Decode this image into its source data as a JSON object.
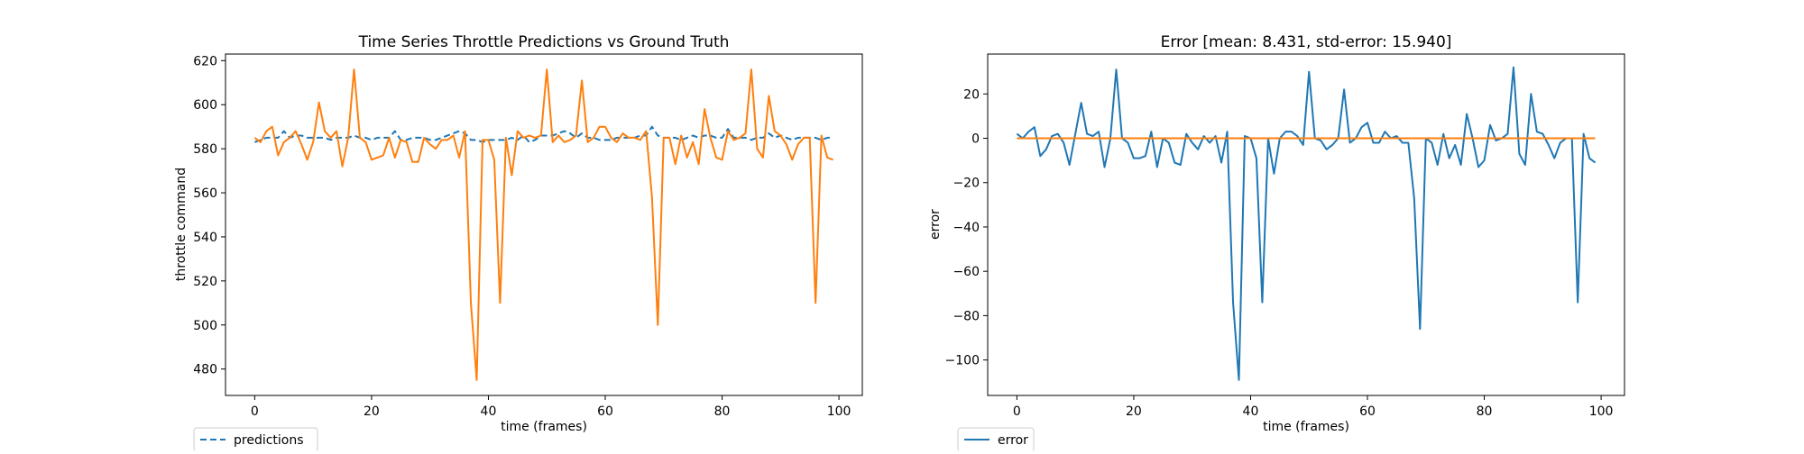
{
  "chart_data": [
    {
      "type": "line",
      "title": "Time Series Throttle Predictions vs Ground Truth",
      "xlabel": "time (frames)",
      "ylabel": "throttle command",
      "xlim": [
        -5,
        104
      ],
      "ylim": [
        468,
        623
      ],
      "xticks": [
        0,
        20,
        40,
        60,
        80,
        100
      ],
      "yticks": [
        480,
        500,
        520,
        540,
        560,
        580,
        600,
        620
      ],
      "legend_position": "below-left",
      "series": [
        {
          "name": "predictions",
          "color": "#1f77b4",
          "dash": true,
          "in_legend": true,
          "values": [
            583,
            584,
            585,
            585,
            585,
            588,
            585,
            586,
            586,
            585,
            585,
            585,
            585,
            584,
            585,
            585,
            585,
            586,
            585,
            585,
            584,
            585,
            585,
            585,
            588,
            584,
            584,
            585,
            585,
            585,
            584,
            584,
            585,
            586,
            587,
            588,
            587,
            584,
            584,
            583,
            584,
            584,
            584,
            584,
            585,
            584,
            586,
            583,
            584,
            586,
            586,
            586,
            587,
            588,
            587,
            585,
            587,
            585,
            585,
            584,
            584,
            584,
            585,
            585,
            585,
            585,
            586,
            586,
            590,
            586,
            585,
            585,
            585,
            584,
            585,
            586,
            585,
            586,
            586,
            585,
            585,
            589,
            585,
            585,
            585,
            584,
            585,
            585,
            587,
            585,
            586,
            585,
            584,
            585,
            585,
            585,
            585,
            584,
            585,
            585
          ]
        },
        {
          "name": "",
          "color": "#ff7f0e",
          "dash": false,
          "in_legend": false,
          "values": [
            585,
            583,
            588,
            590,
            577,
            583,
            585,
            588,
            582,
            575,
            583,
            601,
            588,
            585,
            588,
            572,
            585,
            616,
            585,
            583,
            575,
            576,
            577,
            585,
            576,
            584,
            583,
            574,
            574,
            585,
            582,
            580,
            584,
            584,
            586,
            576,
            588,
            510,
            475,
            584,
            584,
            575,
            510,
            585,
            568,
            588,
            585,
            586,
            585,
            586,
            616,
            583,
            586,
            583,
            584,
            586,
            611,
            583,
            585,
            590,
            590,
            585,
            583,
            587,
            585,
            585,
            584,
            588,
            558,
            500,
            585,
            585,
            573,
            586,
            576,
            583,
            573,
            598,
            585,
            576,
            575,
            588,
            584,
            585,
            587,
            616,
            580,
            576,
            604,
            588,
            586,
            582,
            575,
            582,
            585,
            585,
            510,
            586,
            576,
            575
          ]
        }
      ]
    },
    {
      "type": "line",
      "title": "Error [mean: 8.431, std-error: 15.940]",
      "xlabel": "time (frames)",
      "ylabel": "error",
      "xlim": [
        -5,
        104
      ],
      "ylim": [
        -116,
        38
      ],
      "xticks": [
        0,
        20,
        40,
        60,
        80,
        100
      ],
      "yticks": [
        -100,
        -80,
        -60,
        -40,
        -20,
        0,
        20
      ],
      "legend_position": "below-left",
      "series": [
        {
          "name": "error",
          "color": "#1f77b4",
          "dash": false,
          "in_legend": true,
          "values": [
            2,
            0,
            3,
            5,
            -8,
            -5,
            1,
            2,
            -2,
            -12,
            2,
            16,
            2,
            1,
            3,
            -13,
            0,
            31,
            0,
            -2,
            -9,
            -9,
            -8,
            3,
            -13,
            0,
            -2,
            -11,
            -12,
            2,
            -2,
            -5,
            1,
            -2,
            1,
            -11,
            3,
            -74,
            -109,
            1,
            0,
            -9,
            -74,
            0,
            -16,
            0,
            3,
            3,
            1,
            -3,
            30,
            0,
            -1,
            -5,
            -3,
            0,
            22,
            -2,
            0,
            5,
            7,
            -2,
            -2,
            3,
            0,
            1,
            -2,
            -2,
            -27,
            -86,
            0,
            -2,
            -12,
            2,
            -9,
            -3,
            -12,
            11,
            0,
            -13,
            -10,
            6,
            -1,
            0,
            2,
            32,
            -7,
            -12,
            20,
            3,
            2,
            -3,
            -9,
            -2,
            0,
            0,
            -74,
            2,
            -9,
            -11
          ]
        },
        {
          "name": "",
          "color": "#ff7f0e",
          "dash": false,
          "in_legend": false,
          "values": [
            0,
            0,
            0,
            0,
            0,
            0,
            0,
            0,
            0,
            0,
            0,
            0,
            0,
            0,
            0,
            0,
            0,
            0,
            0,
            0,
            0,
            0,
            0,
            0,
            0,
            0,
            0,
            0,
            0,
            0,
            0,
            0,
            0,
            0,
            0,
            0,
            0,
            0,
            0,
            0,
            0,
            0,
            0,
            0,
            0,
            0,
            0,
            0,
            0,
            0,
            0,
            0,
            0,
            0,
            0,
            0,
            0,
            0,
            0,
            0,
            0,
            0,
            0,
            0,
            0,
            0,
            0,
            0,
            0,
            0,
            0,
            0,
            0,
            0,
            0,
            0,
            0,
            0,
            0,
            0,
            0,
            0,
            0,
            0,
            0,
            0,
            0,
            0,
            0,
            0,
            0,
            0,
            0,
            0,
            0,
            0,
            0,
            0,
            0,
            0
          ]
        }
      ]
    }
  ]
}
